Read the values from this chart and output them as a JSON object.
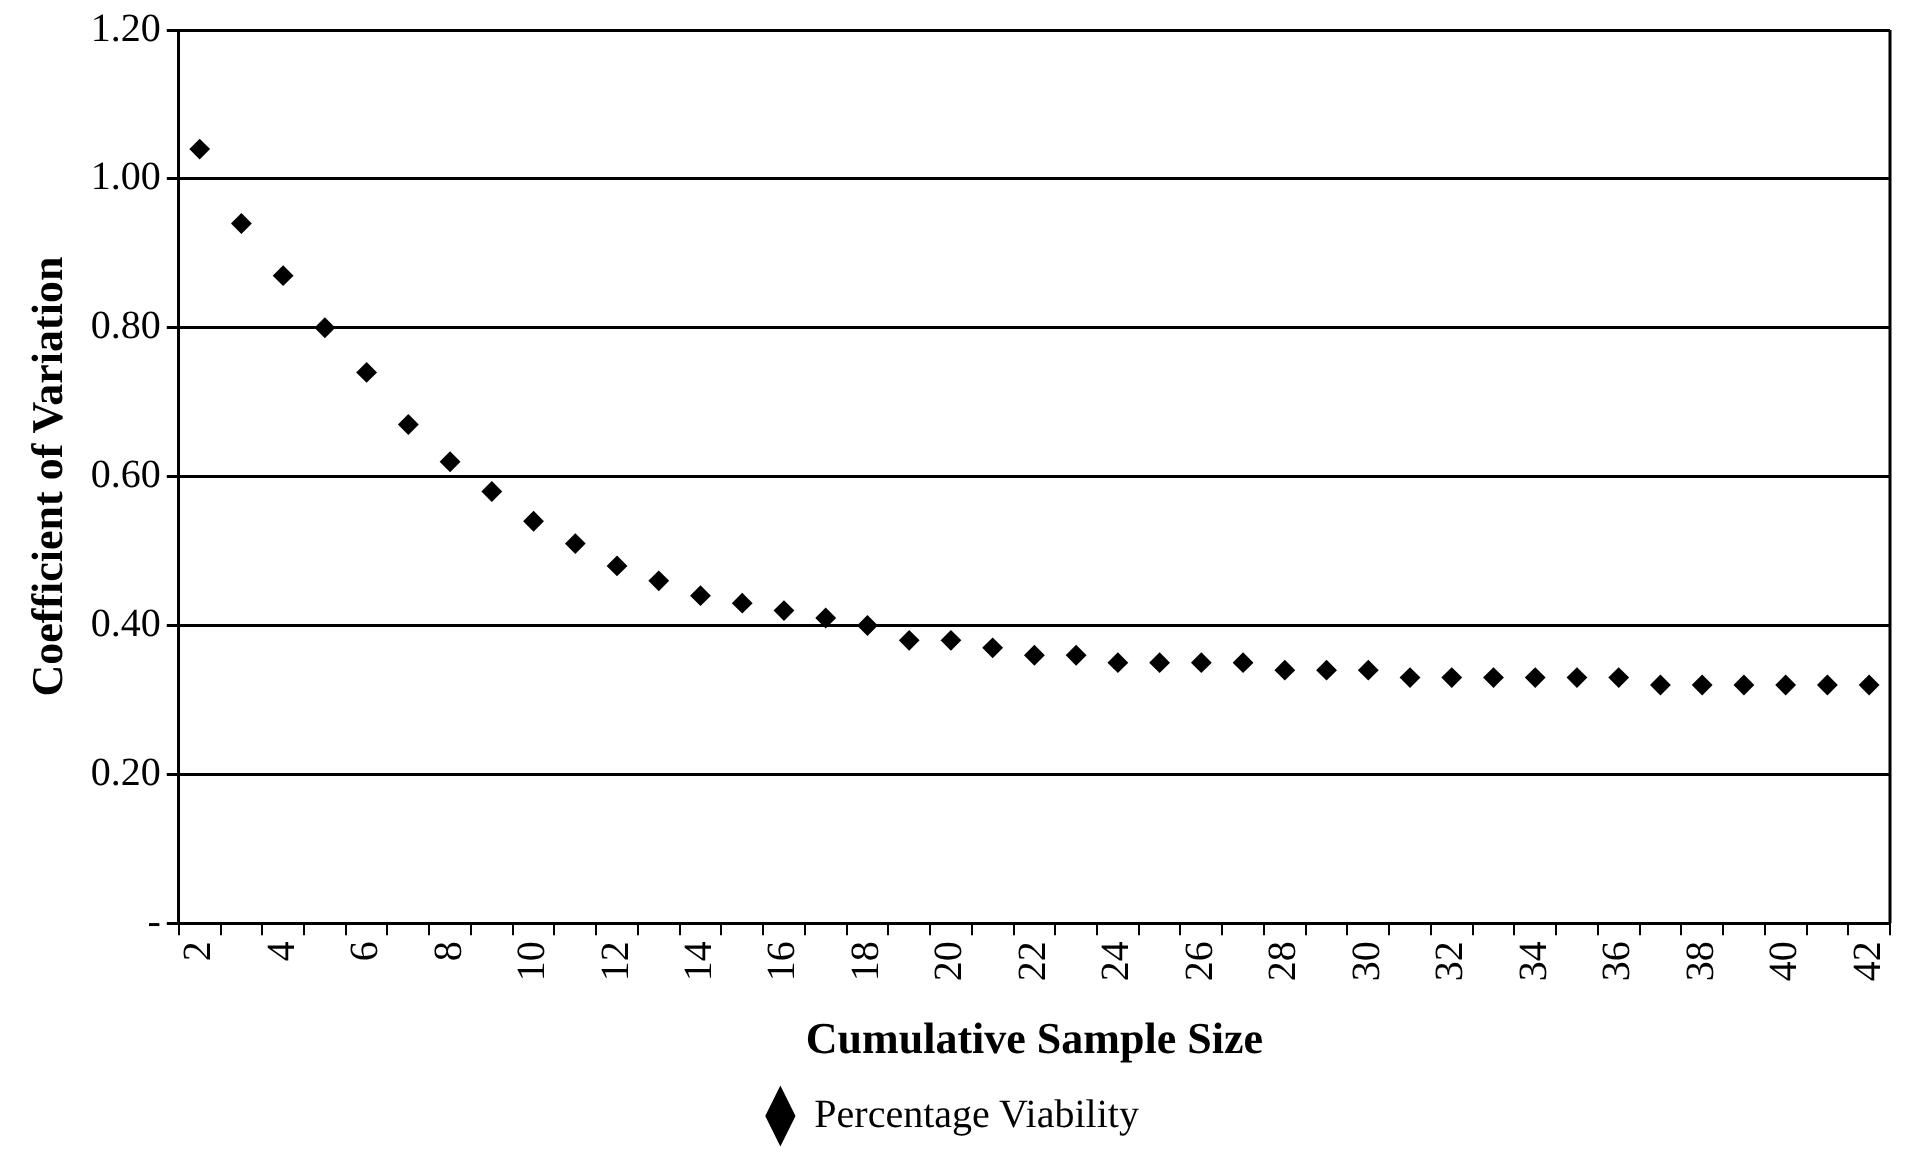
{
  "chart_data": {
    "type": "scatter",
    "xlabel": "Cumulative Sample Size",
    "ylabel": "Coefficient of Variation",
    "categories": [
      "2",
      null,
      "4",
      null,
      "6",
      null,
      "8",
      null,
      "10",
      null,
      "12",
      null,
      "14",
      null,
      "16",
      null,
      "18",
      null,
      "20",
      null,
      "22",
      null,
      "24",
      null,
      "26",
      null,
      "28",
      null,
      "30",
      null,
      "32",
      null,
      "34",
      null,
      "36",
      null,
      "38",
      null,
      "40",
      null,
      "42"
    ],
    "series": [
      {
        "name": "Percentage Viability",
        "color": "#000000",
        "values": [
          1.04,
          0.94,
          0.87,
          0.8,
          0.74,
          0.67,
          0.62,
          0.58,
          0.54,
          0.51,
          0.48,
          0.46,
          0.44,
          0.43,
          0.42,
          0.41,
          0.4,
          0.38,
          0.38,
          0.37,
          0.36,
          0.36,
          0.35,
          0.35,
          0.35,
          0.35,
          0.34,
          0.34,
          0.34,
          0.33,
          0.33,
          0.33,
          0.33,
          0.33,
          0.33,
          0.32,
          0.32,
          0.32,
          0.32,
          0.32,
          0.32
        ]
      }
    ],
    "ylim": [
      0,
      1.2
    ],
    "yticks": [
      {
        "value": 0,
        "label": "-"
      },
      {
        "value": 0.2,
        "label": "0.20"
      },
      {
        "value": 0.4,
        "label": "0.40"
      },
      {
        "value": 0.6,
        "label": "0.60"
      },
      {
        "value": 0.8,
        "label": "0.80"
      },
      {
        "value": 1,
        "label": "1.00"
      },
      {
        "value": 1.2,
        "label": "1.20"
      }
    ],
    "grid": "y",
    "legend": "bottom",
    "marker": "diamond"
  }
}
